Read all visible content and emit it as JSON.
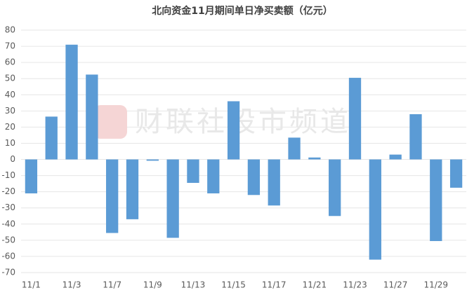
{
  "chart_data": {
    "type": "bar",
    "title": "北向资金11月期间单日净买卖额（亿元）",
    "watermark": "财联社股市频道",
    "categories": [
      "11/1",
      null,
      "11/3",
      null,
      "11/7",
      null,
      "11/9",
      null,
      "11/13",
      null,
      "11/15",
      null,
      "11/17",
      null,
      "11/21",
      null,
      "11/23",
      null,
      "11/27",
      null,
      "11/29",
      null
    ],
    "values": [
      -21,
      26.5,
      71,
      52.5,
      -45.5,
      -37,
      -0.8,
      -48.5,
      -14.5,
      -21,
      36,
      -22,
      -28.5,
      13.5,
      1.2,
      -35,
      50.5,
      -62,
      3,
      28,
      -50.5,
      -17.5
    ],
    "color": "#5b9bd5",
    "ylim": [
      -70,
      80
    ],
    "yticks": [
      -70,
      -60,
      -50,
      -40,
      -30,
      -20,
      -10,
      0,
      10,
      20,
      30,
      40,
      50,
      60,
      70,
      80
    ],
    "grid": true
  }
}
